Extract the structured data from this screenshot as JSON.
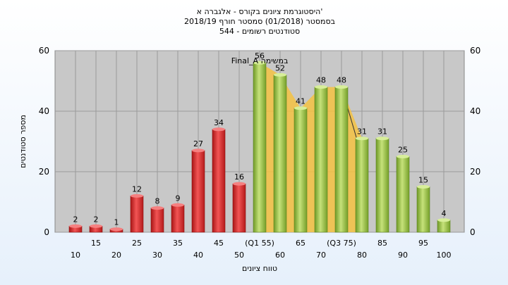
{
  "chart_data": {
    "type": "bar",
    "title_lines": [
      "היסטוגרמת ציונים בקורס - אלגברה א'",
      "בסמסטר  (01/2018)  סמסטר חורף 2018/19",
      "סטודנטים רשומים - 544"
    ],
    "ylabel": "מספר סטודנטים",
    "xlabel": "טווח ציונים",
    "annotation": "Final_A במשימה",
    "ylim": [
      0,
      60
    ],
    "yticks": [
      0,
      20,
      40,
      60
    ],
    "categories": [
      "10",
      "15",
      "20",
      "25",
      "30",
      "35",
      "40",
      "45",
      "50",
      "(Q1 55)",
      "60",
      "65",
      "70",
      "(Q3 75)",
      "80",
      "85",
      "90",
      "95",
      "100"
    ],
    "values": [
      2,
      2,
      1,
      12,
      8,
      9,
      27,
      34,
      16,
      56,
      52,
      41,
      48,
      48,
      31,
      31,
      25,
      15,
      4
    ],
    "value_labels": [
      "2",
      "2",
      "1",
      "12",
      "8",
      "9",
      "27",
      "34",
      "16",
      "56",
      "52",
      "41",
      "48",
      "48",
      "31",
      "31",
      "25",
      "15",
      "4"
    ],
    "bar_colors": [
      "#dd3333",
      "#dd3333",
      "#dd3333",
      "#dd3333",
      "#dd3333",
      "#dd3333",
      "#dd3333",
      "#dd3333",
      "#dd3333",
      "#9cc34a",
      "#9cc34a",
      "#9cc34a",
      "#9cc34a",
      "#9cc34a",
      "#9cc34a",
      "#9cc34a",
      "#9cc34a",
      "#9cc34a",
      "#9cc34a"
    ],
    "iqr_band": [
      55,
      75
    ],
    "colors": {
      "fail": "#dd3333",
      "pass": "#9cc34a",
      "band": "#f5c242",
      "plot_bg": "#c8c8c8"
    }
  }
}
